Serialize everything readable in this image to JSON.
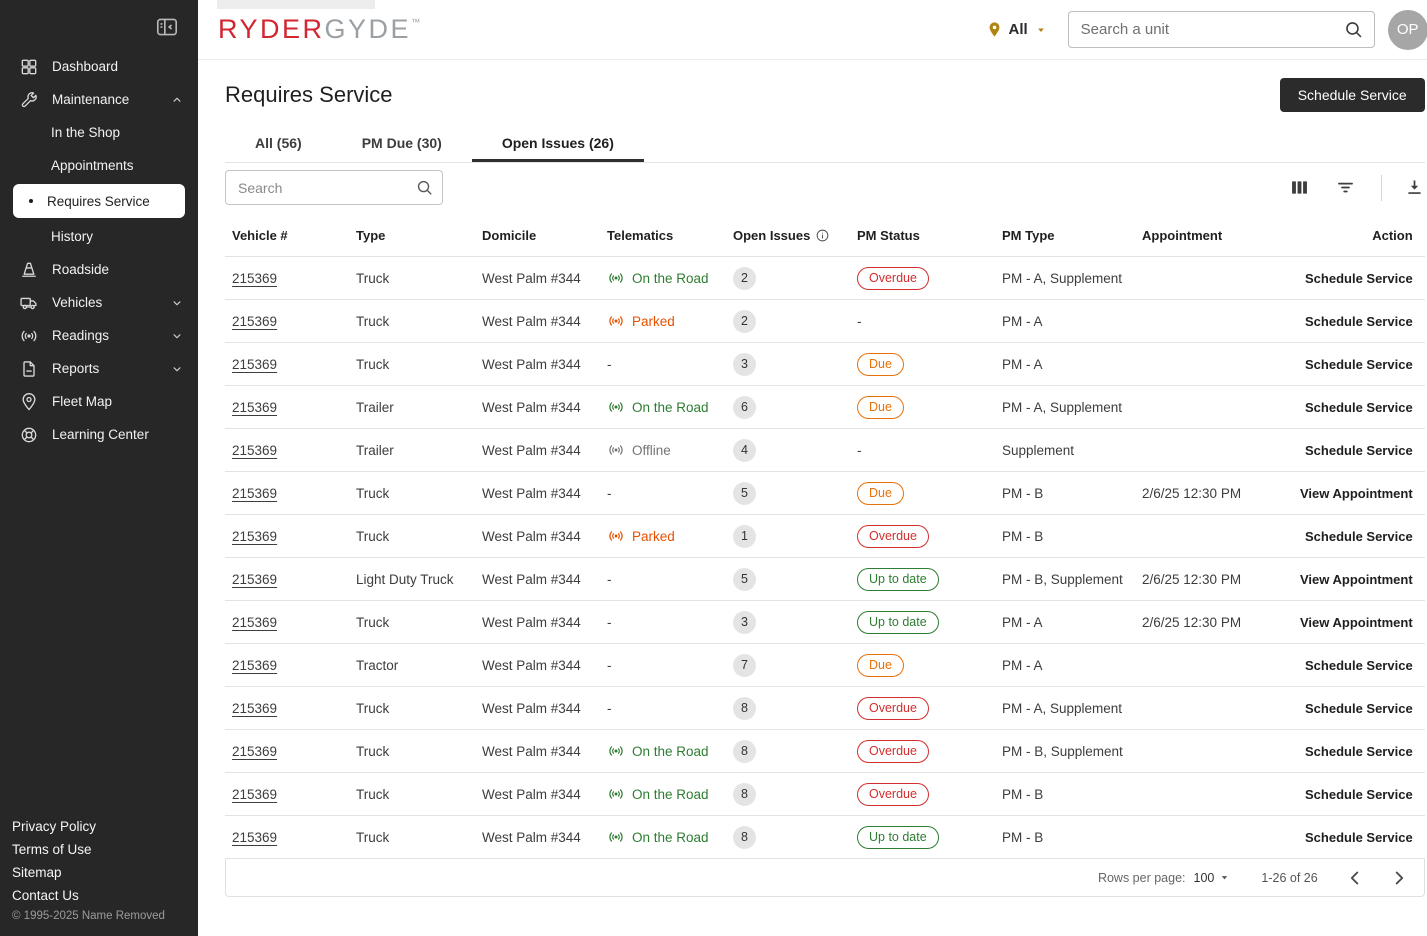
{
  "sidebar": {
    "items": [
      {
        "id": "dashboard",
        "label": "Dashboard",
        "icon": "dashboard"
      },
      {
        "id": "maintenance",
        "label": "Maintenance",
        "icon": "wrench",
        "chevron": "up"
      },
      {
        "id": "in-the-shop",
        "label": "In the Shop",
        "indent": true
      },
      {
        "id": "appointments",
        "label": "Appointments",
        "indent": true
      },
      {
        "id": "requires-service",
        "label": "Requires Service",
        "indent": true,
        "active": true
      },
      {
        "id": "history",
        "label": "History",
        "indent": true
      },
      {
        "id": "roadside",
        "label": "Roadside",
        "icon": "cone"
      },
      {
        "id": "vehicles",
        "label": "Vehicles",
        "icon": "truck",
        "chevron": "down"
      },
      {
        "id": "readings",
        "label": "Readings",
        "icon": "signal",
        "chevron": "down"
      },
      {
        "id": "reports",
        "label": "Reports",
        "icon": "report",
        "chevron": "down"
      },
      {
        "id": "fleet-map",
        "label": "Fleet Map",
        "icon": "pin"
      },
      {
        "id": "learning-center",
        "label": "Learning Center",
        "icon": "help"
      }
    ],
    "footer_links": [
      "Privacy Policy",
      "Terms of Use",
      "Sitemap",
      "Contact Us"
    ],
    "copyright": "© 1995-2025 Name Removed"
  },
  "header": {
    "logo_part1": "RYDER",
    "logo_part2": "GYDE",
    "logo_tm": "™",
    "location_label": "All",
    "search_placeholder": "Search a unit",
    "avatar_initials": "OP"
  },
  "page": {
    "title": "Requires Service",
    "schedule_button": "Schedule Service",
    "tabs": [
      {
        "id": "all",
        "label": "All (56)"
      },
      {
        "id": "pm-due",
        "label": "PM Due (30)"
      },
      {
        "id": "open-issues",
        "label": "Open Issues (26)",
        "active": true
      }
    ],
    "table_search_placeholder": "Search"
  },
  "table": {
    "columns": [
      {
        "label": "Vehicle #"
      },
      {
        "label": "Type"
      },
      {
        "label": "Domicile"
      },
      {
        "label": "Telematics"
      },
      {
        "label": "Open Issues",
        "info": true
      },
      {
        "label": "PM Status"
      },
      {
        "label": "PM Type"
      },
      {
        "label": "Appointment"
      },
      {
        "label": "Action",
        "action": true
      }
    ],
    "rows": [
      {
        "vehicle": "215369",
        "type": "Truck",
        "domicile": "West Palm #344",
        "telematics": {
          "state": "on-road",
          "label": "On the Road"
        },
        "open_issues": "2",
        "pm_status": {
          "state": "overdue",
          "label": "Overdue"
        },
        "pm_type": "PM - A, Supplement",
        "appointment": "",
        "action": "Schedule Service"
      },
      {
        "vehicle": "215369",
        "type": "Truck",
        "domicile": "West Palm #344",
        "telematics": {
          "state": "parked",
          "label": "Parked"
        },
        "open_issues": "2",
        "pm_status": {
          "state": "none",
          "label": "-"
        },
        "pm_type": "PM - A",
        "appointment": "",
        "action": "Schedule Service"
      },
      {
        "vehicle": "215369",
        "type": "Truck",
        "domicile": "West Palm #344",
        "telematics": {
          "state": "none",
          "label": "-"
        },
        "open_issues": "3",
        "pm_status": {
          "state": "due",
          "label": "Due"
        },
        "pm_type": "PM - A",
        "appointment": "",
        "action": "Schedule Service"
      },
      {
        "vehicle": "215369",
        "type": "Trailer",
        "domicile": "West Palm #344",
        "telematics": {
          "state": "on-road",
          "label": "On the Road"
        },
        "open_issues": "6",
        "pm_status": {
          "state": "due",
          "label": "Due"
        },
        "pm_type": "PM - A, Supplement",
        "appointment": "",
        "action": "Schedule Service"
      },
      {
        "vehicle": "215369",
        "type": "Trailer",
        "domicile": "West Palm #344",
        "telematics": {
          "state": "offline",
          "label": "Offline"
        },
        "open_issues": "4",
        "pm_status": {
          "state": "none",
          "label": "-"
        },
        "pm_type": "Supplement",
        "appointment": "",
        "action": "Schedule Service"
      },
      {
        "vehicle": "215369",
        "type": "Truck",
        "domicile": "West Palm #344",
        "telematics": {
          "state": "none",
          "label": "-"
        },
        "open_issues": "5",
        "pm_status": {
          "state": "due",
          "label": "Due"
        },
        "pm_type": "PM - B",
        "appointment": "2/6/25 12:30 PM",
        "action": "View Appointment"
      },
      {
        "vehicle": "215369",
        "type": "Truck",
        "domicile": "West Palm #344",
        "telematics": {
          "state": "parked",
          "label": "Parked"
        },
        "open_issues": "1",
        "pm_status": {
          "state": "overdue",
          "label": "Overdue"
        },
        "pm_type": "PM - B",
        "appointment": "",
        "action": "Schedule Service"
      },
      {
        "vehicle": "215369",
        "type": "Light Duty Truck",
        "domicile": "West Palm #344",
        "telematics": {
          "state": "none",
          "label": "-"
        },
        "open_issues": "5",
        "pm_status": {
          "state": "up-to-date",
          "label": "Up to date"
        },
        "pm_type": "PM - B, Supplement",
        "appointment": "2/6/25 12:30 PM",
        "action": "View Appointment"
      },
      {
        "vehicle": "215369",
        "type": "Truck",
        "domicile": "West Palm #344",
        "telematics": {
          "state": "none",
          "label": "-"
        },
        "open_issues": "3",
        "pm_status": {
          "state": "up-to-date",
          "label": "Up to date"
        },
        "pm_type": "PM - A",
        "appointment": "2/6/25 12:30 PM",
        "action": "View Appointment"
      },
      {
        "vehicle": "215369",
        "type": "Tractor",
        "domicile": "West Palm #344",
        "telematics": {
          "state": "none",
          "label": "-"
        },
        "open_issues": "7",
        "pm_status": {
          "state": "due",
          "label": "Due"
        },
        "pm_type": "PM - A",
        "appointment": "",
        "action": "Schedule Service"
      },
      {
        "vehicle": "215369",
        "type": "Truck",
        "domicile": "West Palm #344",
        "telematics": {
          "state": "none",
          "label": "-"
        },
        "open_issues": "8",
        "pm_status": {
          "state": "overdue",
          "label": "Overdue"
        },
        "pm_type": "PM - A, Supplement",
        "appointment": "",
        "action": "Schedule Service"
      },
      {
        "vehicle": "215369",
        "type": "Truck",
        "domicile": "West Palm #344",
        "telematics": {
          "state": "on-road",
          "label": "On the Road"
        },
        "open_issues": "8",
        "pm_status": {
          "state": "overdue",
          "label": "Overdue"
        },
        "pm_type": "PM - B, Supplement",
        "appointment": "",
        "action": "Schedule Service"
      },
      {
        "vehicle": "215369",
        "type": "Truck",
        "domicile": "West Palm #344",
        "telematics": {
          "state": "on-road",
          "label": "On the Road"
        },
        "open_issues": "8",
        "pm_status": {
          "state": "overdue",
          "label": "Overdue"
        },
        "pm_type": "PM - B",
        "appointment": "",
        "action": "Schedule Service"
      },
      {
        "vehicle": "215369",
        "type": "Truck",
        "domicile": "West Palm #344",
        "telematics": {
          "state": "on-road",
          "label": "On the Road"
        },
        "open_issues": "8",
        "pm_status": {
          "state": "up-to-date",
          "label": "Up to date"
        },
        "pm_type": "PM - B",
        "appointment": "",
        "action": "Schedule Service"
      }
    ]
  },
  "pagination": {
    "rows_per_page_label": "Rows per page:",
    "rows_per_page_value": "100",
    "range": "1-26 of 26"
  },
  "colors": {
    "accent_red": "#d22630",
    "gold": "#b08515",
    "overdue": "#d32f2f",
    "due": "#e8710a",
    "up_to_date": "#2e7d32",
    "sidebar_bg": "#272727"
  }
}
